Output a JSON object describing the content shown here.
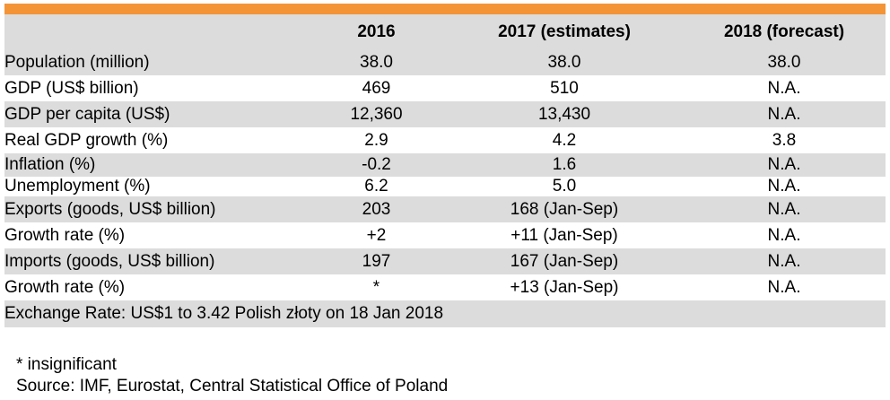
{
  "table": {
    "headers": [
      "",
      "2016",
      "2017 (estimates)",
      "2018 (forecast)"
    ],
    "rows": [
      {
        "label": "Population (million)",
        "y2016": "38.0",
        "y2017": "38.0",
        "y2018": "38.0"
      },
      {
        "label": "GDP (US$ billion)",
        "y2016": "469",
        "y2017": "510",
        "y2018": "N.A."
      },
      {
        "label": "GDP per capita (US$)",
        "y2016": "12,360",
        "y2017": "13,430",
        "y2018": "N.A."
      },
      {
        "label": "Real GDP growth (%)",
        "y2016": "2.9",
        "y2017": "4.2",
        "y2018": "3.8"
      },
      {
        "label": "Inflation (%)",
        "y2016": "-0.2",
        "y2017": "1.6",
        "y2018": "N.A."
      },
      {
        "label": "Unemployment (%)",
        "y2016": "6.2",
        "y2017": "5.0",
        "y2018": "N.A."
      },
      {
        "label": "Exports (goods, US$ billion)",
        "y2016": "203",
        "y2017": "168 (Jan-Sep)",
        "y2018": "N.A."
      },
      {
        "label": "Growth rate (%)",
        "y2016": "+2",
        "y2017": "+11 (Jan-Sep)",
        "y2018": "N.A."
      },
      {
        "label": "Imports (goods, US$ billion)",
        "y2016": "197",
        "y2017": "167 (Jan-Sep)",
        "y2018": "N.A."
      },
      {
        "label": "Growth rate (%)",
        "y2016": "*",
        "y2017": "+13 (Jan-Sep)",
        "y2018": "N.A."
      }
    ],
    "exchange_rate": "Exchange Rate: US$1 to 3.42 Polish złoty on 18 Jan 2018"
  },
  "notes": {
    "footnote": "* insignificant",
    "source": "Source: IMF, Eurostat, Central Statistical Office of Poland"
  },
  "colors": {
    "accent_bar": "#f39437",
    "row_shade": "#dcdcdc"
  }
}
